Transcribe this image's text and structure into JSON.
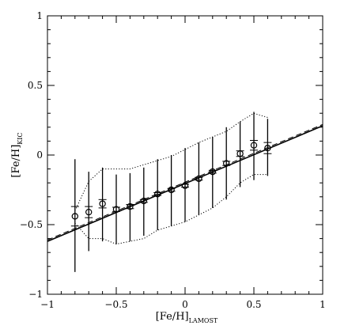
{
  "chart_data": {
    "type": "scatter",
    "xlabel": "[Fe/H]",
    "xlabel_sub": "LAMOST",
    "ylabel": "[Fe/H]",
    "ylabel_sub": "KIC",
    "xlim": [
      -1,
      1
    ],
    "ylim": [
      -1,
      1
    ],
    "xticks": [
      -1,
      -0.5,
      0,
      0.5,
      1
    ],
    "yticks": [
      -1,
      -0.5,
      0,
      0.5,
      1
    ],
    "xtick_labels": [
      "−1",
      "−0.5",
      "0",
      "0.5",
      "1"
    ],
    "ytick_labels": [
      "−1",
      "−0.5",
      "0",
      "0.5",
      "1"
    ],
    "grid": false,
    "points": [
      {
        "x": -0.8,
        "y": -0.44,
        "sem": 0.07,
        "sd_lo": -0.84,
        "sd_hi": -0.03
      },
      {
        "x": -0.7,
        "y": -0.41,
        "sem": 0.04,
        "sd_lo": -0.69,
        "sd_hi": -0.12
      },
      {
        "x": -0.6,
        "y": -0.35,
        "sem": 0.03,
        "sd_lo": -0.62,
        "sd_hi": -0.09
      },
      {
        "x": -0.5,
        "y": -0.39,
        "sem": 0.015,
        "sd_lo": -0.64,
        "sd_hi": -0.14
      },
      {
        "x": -0.4,
        "y": -0.37,
        "sem": 0.015,
        "sd_lo": -0.62,
        "sd_hi": -0.13
      },
      {
        "x": -0.3,
        "y": -0.33,
        "sem": 0.01,
        "sd_lo": -0.58,
        "sd_hi": -0.09
      },
      {
        "x": -0.2,
        "y": -0.28,
        "sem": 0.01,
        "sd_lo": -0.54,
        "sd_hi": -0.03
      },
      {
        "x": -0.1,
        "y": -0.25,
        "sem": 0.01,
        "sd_lo": -0.51,
        "sd_hi": 0.0
      },
      {
        "x": 0.0,
        "y": -0.22,
        "sem": 0.01,
        "sd_lo": -0.48,
        "sd_hi": 0.05
      },
      {
        "x": 0.1,
        "y": -0.17,
        "sem": 0.01,
        "sd_lo": -0.43,
        "sd_hi": 0.09
      },
      {
        "x": 0.2,
        "y": -0.12,
        "sem": 0.01,
        "sd_lo": -0.38,
        "sd_hi": 0.13
      },
      {
        "x": 0.3,
        "y": -0.06,
        "sem": 0.015,
        "sd_lo": -0.32,
        "sd_hi": 0.2
      },
      {
        "x": 0.4,
        "y": 0.01,
        "sem": 0.02,
        "sd_lo": -0.23,
        "sd_hi": 0.24
      },
      {
        "x": 0.5,
        "y": 0.07,
        "sem": 0.035,
        "sd_lo": -0.18,
        "sd_hi": 0.31
      },
      {
        "x": 0.6,
        "y": 0.05,
        "sem": 0.04,
        "sd_lo": -0.15,
        "sd_hi": 0.26
      }
    ],
    "fit_lines": [
      {
        "style": "solid",
        "x": [
          -1,
          1
        ],
        "y": [
          -0.62,
          0.21
        ]
      },
      {
        "style": "dashed",
        "x": [
          -1,
          1
        ],
        "y": [
          -0.61,
          0.22
        ]
      }
    ],
    "envelope_upper": [
      {
        "x": -0.8,
        "y": -0.4
      },
      {
        "x": -0.7,
        "y": -0.19
      },
      {
        "x": -0.6,
        "y": -0.1
      },
      {
        "x": -0.5,
        "y": -0.1
      },
      {
        "x": -0.4,
        "y": -0.1
      },
      {
        "x": -0.3,
        "y": -0.07
      },
      {
        "x": -0.2,
        "y": -0.04
      },
      {
        "x": -0.1,
        "y": -0.01
      },
      {
        "x": 0.0,
        "y": 0.04
      },
      {
        "x": 0.1,
        "y": 0.09
      },
      {
        "x": 0.2,
        "y": 0.13
      },
      {
        "x": 0.3,
        "y": 0.17
      },
      {
        "x": 0.4,
        "y": 0.24
      },
      {
        "x": 0.5,
        "y": 0.3
      },
      {
        "x": 0.6,
        "y": 0.27
      }
    ],
    "envelope_lower": [
      {
        "x": -0.8,
        "y": -0.49
      },
      {
        "x": -0.7,
        "y": -0.6
      },
      {
        "x": -0.6,
        "y": -0.6
      },
      {
        "x": -0.5,
        "y": -0.64
      },
      {
        "x": -0.4,
        "y": -0.62
      },
      {
        "x": -0.3,
        "y": -0.6
      },
      {
        "x": -0.2,
        "y": -0.54
      },
      {
        "x": -0.1,
        "y": -0.51
      },
      {
        "x": 0.0,
        "y": -0.48
      },
      {
        "x": 0.1,
        "y": -0.43
      },
      {
        "x": 0.2,
        "y": -0.38
      },
      {
        "x": 0.3,
        "y": -0.3
      },
      {
        "x": 0.4,
        "y": -0.2
      },
      {
        "x": 0.5,
        "y": -0.14
      },
      {
        "x": 0.6,
        "y": -0.14
      }
    ]
  }
}
